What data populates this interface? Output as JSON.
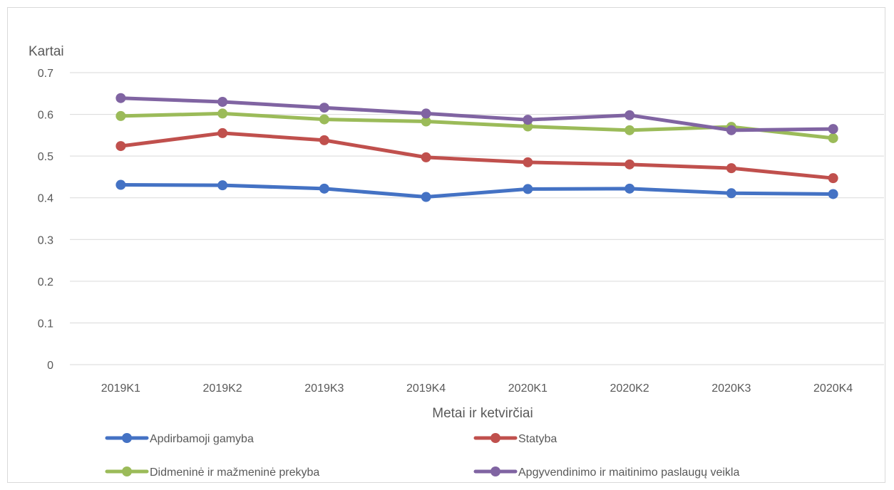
{
  "chart_data": {
    "type": "line",
    "title": "",
    "ylabel": "Kartai",
    "xlabel": "Metai ir ketvirčiai",
    "ylim": [
      0,
      0.7
    ],
    "yticks": [
      "0",
      "0.1",
      "0.2",
      "0.3",
      "0.4",
      "0.5",
      "0.6",
      "0.7"
    ],
    "categories": [
      "2019K1",
      "2019K2",
      "2019K3",
      "2019K4",
      "2020K1",
      "2020K2",
      "2020K3",
      "2020K4"
    ],
    "grid": true,
    "legend_position": "bottom",
    "series": [
      {
        "name": "Apdirbamoji gamyba",
        "color": "#4472c4",
        "values": [
          0.431,
          0.43,
          0.422,
          0.402,
          0.421,
          0.422,
          0.411,
          0.409
        ]
      },
      {
        "name": "Statyba",
        "color": "#c0504d",
        "values": [
          0.524,
          0.555,
          0.538,
          0.497,
          0.485,
          0.48,
          0.471,
          0.447
        ]
      },
      {
        "name": "Didmeninė ir mažmeninė prekyba",
        "color": "#9bbb59",
        "values": [
          0.596,
          0.602,
          0.588,
          0.583,
          0.571,
          0.562,
          0.57,
          0.543
        ]
      },
      {
        "name": "Apgyvendinimo ir maitinimo paslaugų veikla",
        "color": "#8064a2",
        "values": [
          0.639,
          0.63,
          0.616,
          0.602,
          0.587,
          0.598,
          0.562,
          0.565
        ]
      }
    ]
  }
}
